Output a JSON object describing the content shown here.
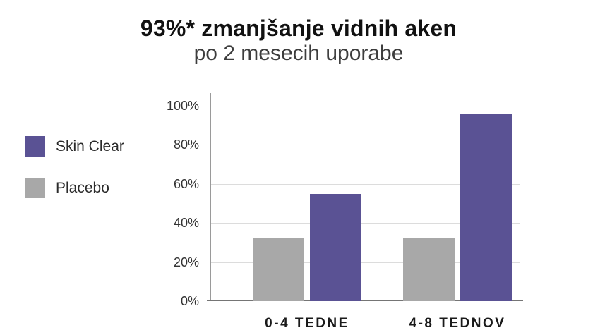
{
  "header": {
    "title": "93%* zmanjšanje vidnih aken",
    "subtitle": "po 2 mesecih uporabe"
  },
  "chart_data": {
    "type": "bar",
    "categories": [
      "0-4 TEDNE",
      "4-8 TEDNOV"
    ],
    "series": [
      {
        "name": "Skin Clear",
        "color": "#5a5294",
        "values": [
          55,
          96
        ]
      },
      {
        "name": "Placebo",
        "color": "#a8a8a8",
        "values": [
          32,
          32
        ]
      }
    ],
    "title": "93%* zmanjšanje vidnih aken",
    "subtitle": "po 2 mesecih uporabe",
    "xlabel": "",
    "ylabel": "",
    "ylim": [
      0,
      100
    ],
    "ytick_step": 20,
    "ytick_suffix": "%",
    "grid": true,
    "legend_position": "left",
    "bar_order_in_group": [
      "Placebo",
      "Skin Clear"
    ]
  },
  "colors": {
    "skin_clear": "#5a5294",
    "placebo": "#a8a8a8",
    "gridline": "#dcdcdc",
    "y_axis_line": "#9a9a9a",
    "baseline": "#757575",
    "title_text": "#111111",
    "subtitle_text": "#3d3d3d",
    "tick_text": "#333333",
    "category_text": "#1a1a1a"
  }
}
